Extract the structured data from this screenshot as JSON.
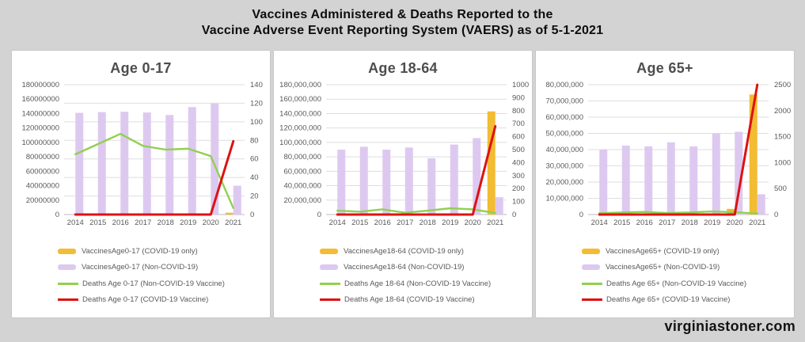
{
  "header": {
    "title_line1": "Vaccines Administered & Deaths Reported to the",
    "title_line2": "Vaccine Adverse Event Reporting System (VAERS) as of 5-1-2021"
  },
  "footer": {
    "watermark": "virginiastoner.com"
  },
  "colors": {
    "background": "#d3d3d3",
    "panel": "#ffffff",
    "covid_bar": "#f2bc33",
    "noncovid_bar": "#ddc9f0",
    "noncovid_line": "#92d050",
    "covid_line": "#dd1212",
    "grid": "#dedede",
    "axis_line": "#b8b8b8",
    "axis_text": "#595959"
  },
  "chart_data": [
    {
      "type": "bar",
      "title": "Age 0-17",
      "categories": [
        "2014",
        "2015",
        "2016",
        "2017",
        "2018",
        "2019",
        "2020",
        "2021"
      ],
      "left_axis": {
        "max": 180000000,
        "step": 20000000,
        "format": "plain",
        "label_values": [
          0,
          20000000,
          40000000,
          60000000,
          80000000,
          100000000,
          120000000,
          140000000,
          160000000,
          180000000
        ]
      },
      "right_axis": {
        "max": 140,
        "step": 20,
        "label_values": [
          0,
          20,
          40,
          60,
          80,
          100,
          120,
          140
        ]
      },
      "grid_intervals": 7,
      "series": [
        {
          "name": "VaccinesAge0-17 (COVID-19 only)",
          "kind": "bar",
          "axis": "left",
          "color": "covid_bar",
          "values": [
            0,
            0,
            0,
            0,
            0,
            0,
            0,
            2500000
          ]
        },
        {
          "name": "VaccinesAge0-17 (Non-COVID-19)",
          "kind": "bar",
          "axis": "left",
          "color": "noncovid_bar",
          "values": [
            141000000,
            142000000,
            142500000,
            141500000,
            138000000,
            149000000,
            154000000,
            40000000
          ]
        },
        {
          "name": "Deaths Age 0-17 (Non-COVID-19 Vaccine)",
          "kind": "line",
          "axis": "right",
          "color": "noncovid_line",
          "values": [
            65,
            76,
            87,
            74,
            70,
            71,
            63,
            7
          ]
        },
        {
          "name": "Deaths Age 0-17 (COVID-19 Vaccine)",
          "kind": "line",
          "axis": "right",
          "color": "covid_line",
          "values": [
            0,
            0,
            0,
            0,
            0,
            0,
            0,
            79
          ]
        }
      ]
    },
    {
      "type": "bar",
      "title": "Age 18-64",
      "categories": [
        "2014",
        "2015",
        "2016",
        "2017",
        "2018",
        "2019",
        "2020",
        "2021"
      ],
      "left_axis": {
        "max": 180000000,
        "step": 20000000,
        "format": "comma",
        "label_values": [
          0,
          20000000,
          40000000,
          60000000,
          80000000,
          100000000,
          120000000,
          140000000,
          160000000,
          180000000
        ]
      },
      "right_axis": {
        "max": 1000,
        "step": 100,
        "label_values": [
          0,
          100,
          200,
          300,
          400,
          500,
          600,
          700,
          800,
          900,
          1000
        ]
      },
      "grid_intervals": 9,
      "series": [
        {
          "name": "VaccinesAge18-64 (COVID-19 only)",
          "kind": "bar",
          "axis": "left",
          "color": "covid_bar",
          "values": [
            0,
            0,
            0,
            0,
            0,
            0,
            0,
            143000000
          ]
        },
        {
          "name": "VaccinesAge18-64 (Non-COVID-19)",
          "kind": "bar",
          "axis": "left",
          "color": "noncovid_bar",
          "values": [
            90000000,
            94000000,
            90000000,
            93000000,
            78000000,
            97000000,
            106000000,
            24000000
          ]
        },
        {
          "name": "Deaths Age 18-64 (Non-COVID-19 Vaccine)",
          "kind": "line",
          "axis": "right",
          "color": "noncovid_line",
          "values": [
            30,
            22,
            40,
            14,
            30,
            48,
            40,
            12
          ]
        },
        {
          "name": "Deaths Age 18-64 (COVID-19 Vaccine)",
          "kind": "line",
          "axis": "right",
          "color": "covid_line",
          "values": [
            0,
            0,
            0,
            0,
            0,
            0,
            0,
            680
          ]
        }
      ]
    },
    {
      "type": "bar",
      "title": "Age 65+",
      "categories": [
        "2014",
        "2015",
        "2016",
        "2017",
        "2018",
        "2019",
        "2020",
        "2021"
      ],
      "left_axis": {
        "max": 80000000,
        "step": 10000000,
        "format": "comma",
        "label_values": [
          0,
          10000000,
          20000000,
          30000000,
          40000000,
          50000000,
          60000000,
          70000000,
          80000000
        ]
      },
      "right_axis": {
        "max": 2500,
        "step": 500,
        "label_values": [
          0,
          500,
          1000,
          1500,
          2000,
          2500
        ]
      },
      "grid_intervals": 8,
      "series": [
        {
          "name": "VaccinesAge65+ (COVID-19 only)",
          "kind": "bar",
          "axis": "left",
          "color": "covid_bar",
          "values": [
            0,
            0,
            0,
            0,
            0,
            0,
            3500000,
            74000000
          ]
        },
        {
          "name": "VaccinesAge65+ (Non-COVID-19)",
          "kind": "bar",
          "axis": "left",
          "color": "noncovid_bar",
          "values": [
            40000000,
            42500000,
            42000000,
            44500000,
            42000000,
            50000000,
            51000000,
            12500000
          ]
        },
        {
          "name": "Deaths Age 65+ (Non-COVID-19 Vaccine)",
          "kind": "line",
          "axis": "right",
          "color": "noncovid_line",
          "values": [
            25,
            40,
            50,
            30,
            40,
            60,
            45,
            20
          ]
        },
        {
          "name": "Deaths Age 65+ (COVID-19 Vaccine)",
          "kind": "line",
          "axis": "right",
          "color": "covid_line",
          "values": [
            0,
            0,
            0,
            0,
            0,
            0,
            0,
            2500
          ]
        }
      ]
    }
  ]
}
